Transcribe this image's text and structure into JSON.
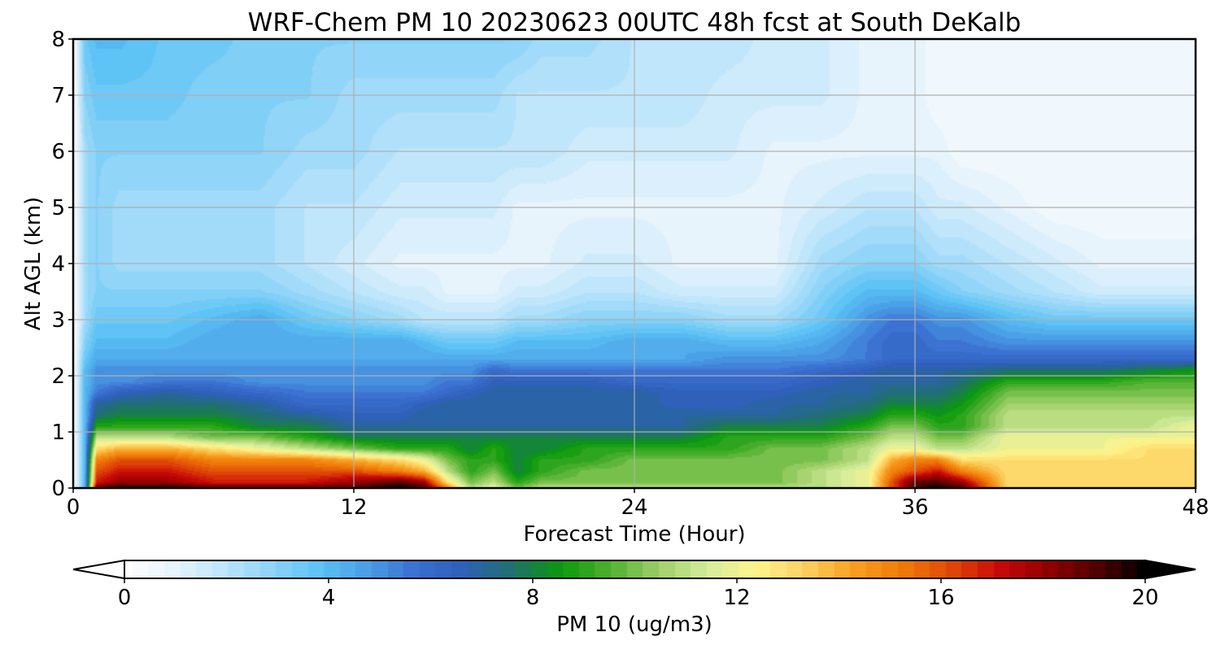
{
  "chart_data": {
    "type": "heatmap",
    "title": "WRF-Chem PM 10  20230623 00UTC 48h fcst at South DeKalb",
    "xlabel": "Forecast Time (Hour)",
    "ylabel": "Alt AGL (km)",
    "xlim": [
      0,
      48
    ],
    "ylim": [
      0,
      8
    ],
    "xticks": [
      0,
      12,
      24,
      36,
      48
    ],
    "yticks": [
      0,
      1,
      2,
      3,
      4,
      5,
      6,
      7,
      8
    ],
    "grid": true,
    "colorbar": {
      "label": "PM 10  (ug/m3)",
      "range": [
        0,
        20
      ],
      "ticks": [
        0,
        4,
        8,
        12,
        16,
        20
      ],
      "extend": "both",
      "orientation": "horizontal",
      "colors": [
        "#ffffff",
        "#e8f4fc",
        "#bfe6fb",
        "#8fd4f8",
        "#5bc2f5",
        "#4a9ee6",
        "#3a6fd0",
        "#2e5fb8",
        "#20706c",
        "#0a9a0a",
        "#50b030",
        "#9ed068",
        "#d6ec9c",
        "#fff58c",
        "#fcd060",
        "#f8a020",
        "#f07a08",
        "#e04808",
        "#c80808",
        "#900000",
        "#500000",
        "#000000"
      ]
    },
    "x": [
      0,
      0.5,
      1,
      2,
      4,
      6,
      8,
      10,
      12,
      14,
      15,
      16,
      17,
      18,
      19,
      20,
      22,
      24,
      26,
      28,
      30,
      32,
      34,
      35,
      36,
      37,
      38,
      40,
      42,
      44,
      46,
      48
    ],
    "y": [
      0,
      0.1,
      0.3,
      0.5,
      0.7,
      0.9,
      1.1,
      1.3,
      1.5,
      1.7,
      1.9,
      2.1,
      2.3,
      2.6,
      3.0,
      3.5,
      4.0,
      5.0,
      6.0,
      7.0,
      8.0
    ],
    "z": [
      [
        0,
        4,
        19,
        20,
        20,
        19,
        19,
        19,
        19,
        20,
        19,
        15,
        11,
        12,
        10,
        11,
        11,
        11,
        11,
        11,
        11,
        11,
        12,
        16,
        19,
        20,
        19,
        13,
        13,
        13,
        13,
        13
      ],
      [
        0,
        4,
        17,
        18,
        18,
        17,
        17,
        17,
        18,
        19,
        18,
        13,
        10,
        11,
        9,
        10,
        10,
        10,
        10,
        10,
        10,
        11,
        12,
        16,
        19,
        19,
        18,
        13,
        13,
        13,
        13,
        13
      ],
      [
        0,
        4,
        16,
        17,
        17,
        16,
        16,
        16,
        16,
        15,
        14,
        11,
        9,
        10,
        8,
        9,
        10,
        10,
        10,
        10,
        10,
        11,
        12,
        15,
        16,
        17,
        15,
        13,
        13,
        13,
        13,
        13
      ],
      [
        0,
        4,
        15,
        16,
        16,
        15,
        15,
        15,
        14,
        13,
        12,
        10,
        9,
        9,
        8,
        9,
        9,
        10,
        10,
        10,
        10,
        10,
        11,
        14,
        15,
        15,
        13,
        13,
        13,
        13,
        13,
        13
      ],
      [
        0,
        4,
        13,
        14,
        14,
        13,
        12,
        11,
        10,
        9,
        9,
        9,
        8,
        9,
        8,
        8,
        9,
        9,
        9,
        9,
        10,
        10,
        11,
        12,
        12,
        11,
        11,
        12,
        12,
        12,
        13,
        13
      ],
      [
        0,
        4,
        11,
        11,
        11,
        10,
        10,
        9,
        8,
        8,
        8,
        8,
        8,
        8,
        8,
        8,
        8,
        8,
        8,
        9,
        9,
        9,
        10,
        11,
        11,
        10,
        10,
        12,
        12,
        12,
        12,
        12
      ],
      [
        0,
        4,
        9,
        9,
        9,
        9,
        8,
        8,
        7,
        7,
        7,
        7,
        7,
        7,
        7,
        7,
        7,
        7,
        7,
        8,
        8,
        8,
        9,
        10,
        10,
        9,
        9,
        11,
        11,
        11,
        11,
        12
      ],
      [
        0,
        4,
        7.5,
        8,
        8,
        8,
        7.5,
        7,
        6.5,
        6.5,
        7,
        7,
        7,
        7,
        7,
        7,
        7,
        7,
        7,
        7,
        7,
        7.5,
        8,
        9,
        9,
        8.5,
        9,
        11,
        11,
        11,
        11,
        11
      ],
      [
        0,
        4,
        7,
        7.5,
        7.5,
        7.5,
        7,
        6,
        6,
        6,
        6.5,
        7,
        7,
        7,
        7,
        7,
        7,
        7,
        6.5,
        6.5,
        7,
        7,
        7.5,
        8,
        8,
        8,
        8.5,
        10.5,
        10.5,
        10.5,
        10.5,
        10.5
      ],
      [
        0,
        4,
        5.5,
        6.5,
        7,
        6.5,
        6,
        5.5,
        5.5,
        5.5,
        5.5,
        6,
        6.5,
        7,
        7,
        7,
        7,
        7,
        6.5,
        6.5,
        6.5,
        7,
        7,
        7.5,
        7.5,
        7.5,
        8,
        10,
        10,
        10,
        10,
        10
      ],
      [
        0,
        4,
        5,
        5,
        5.5,
        5.5,
        5,
        5,
        5,
        5,
        5,
        5.5,
        5.5,
        6.5,
        6.5,
        6.5,
        6.5,
        6,
        6,
        6,
        6,
        6.5,
        7,
        7,
        7,
        7,
        7.5,
        9,
        9,
        9,
        9.5,
        9.5
      ],
      [
        0,
        4,
        5,
        5,
        5,
        5,
        5,
        5,
        5,
        5,
        5,
        5,
        5,
        6,
        5.5,
        5.5,
        5.5,
        5.5,
        5.5,
        5.5,
        5.5,
        6,
        6.5,
        7,
        7,
        7,
        7,
        7.5,
        7.5,
        7.5,
        8,
        8.5
      ],
      [
        0,
        3.5,
        4.5,
        4.5,
        4.5,
        4.5,
        4.5,
        4.5,
        4.5,
        4.5,
        4.5,
        4.5,
        4.5,
        4.5,
        4.5,
        4.5,
        4.5,
        4.5,
        4.5,
        5,
        5,
        5,
        5.5,
        6,
        6,
        6,
        6,
        6,
        6,
        6,
        6,
        6
      ],
      [
        0,
        3,
        4,
        4,
        4,
        4.5,
        4.5,
        4.5,
        4.5,
        4.5,
        4,
        3.5,
        3.5,
        3.5,
        4,
        4,
        4,
        4.5,
        4.5,
        4,
        4,
        4.5,
        5.5,
        6,
        6,
        5.5,
        5.5,
        5,
        5,
        5,
        5,
        5
      ],
      [
        0,
        2.5,
        3.5,
        3.5,
        3.5,
        4,
        4.5,
        3.5,
        3,
        2.5,
        2,
        2,
        2,
        2,
        2.5,
        2.5,
        3,
        3,
        3,
        2.5,
        2.5,
        3.5,
        5,
        5.5,
        5.5,
        5,
        5,
        4,
        3.5,
        3.5,
        3.5,
        3.5
      ],
      [
        0,
        2.5,
        3,
        3,
        3,
        3,
        3,
        2.5,
        2,
        1.5,
        1.5,
        1,
        1,
        1,
        1.5,
        1.5,
        2,
        2,
        1.5,
        1.5,
        1.5,
        3,
        4,
        4,
        4,
        3.5,
        3,
        2.5,
        2,
        1.5,
        1.5,
        1.5
      ],
      [
        0,
        2.5,
        3,
        2.5,
        2.5,
        2.5,
        2.5,
        2,
        1.5,
        1,
        1,
        1,
        1,
        1,
        1,
        1,
        1.5,
        1.5,
        1,
        1,
        1,
        2.5,
        3,
        3,
        3,
        2.5,
        2.5,
        2,
        1.5,
        1,
        1,
        1
      ],
      [
        0,
        2.5,
        3,
        2.5,
        2.5,
        2.5,
        2.5,
        2,
        2,
        1.5,
        1.5,
        1.5,
        1.5,
        1.5,
        1,
        1,
        1,
        1,
        1,
        1,
        1,
        1.5,
        2,
        2,
        2,
        1.5,
        1.5,
        1,
        0.5,
        0.5,
        0.5,
        0.5
      ],
      [
        0,
        2.5,
        3,
        3,
        3,
        3,
        3,
        2.5,
        2.5,
        2,
        2,
        2,
        2,
        2,
        2,
        2,
        1.5,
        1.5,
        1.5,
        1.5,
        1,
        1,
        1,
        1,
        1,
        1,
        0.5,
        0.5,
        0.5,
        0.5,
        0.5,
        0.5
      ],
      [
        0,
        3,
        3.5,
        3.5,
        3.5,
        3,
        3,
        3,
        2.5,
        2.5,
        2.5,
        2.5,
        2.5,
        2.5,
        2,
        2,
        2,
        2,
        2,
        1.5,
        1.5,
        1.5,
        1,
        1,
        1,
        0.5,
        0.5,
        0.5,
        0.5,
        0.5,
        0.5,
        0.5
      ],
      [
        0,
        3.5,
        4,
        4,
        3.5,
        3.5,
        3,
        3,
        3,
        3,
        3,
        3,
        3,
        3,
        3,
        2.5,
        2.5,
        2,
        2,
        2,
        1.5,
        1.5,
        1,
        1,
        1,
        0.5,
        0.5,
        0.5,
        0.5,
        0.5,
        0.5,
        0.5
      ]
    ]
  }
}
